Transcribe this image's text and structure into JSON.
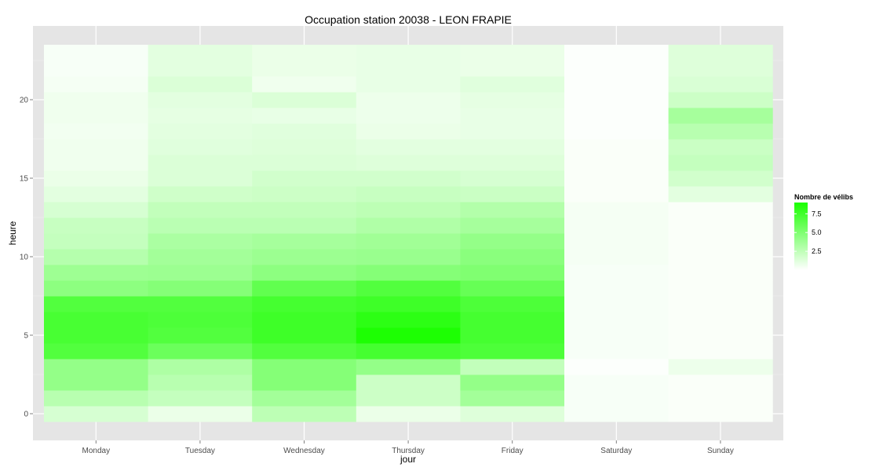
{
  "chart_data": {
    "type": "heatmap",
    "title": "Occupation station 20038 - LEON FRAPIE",
    "xlabel": "jour",
    "ylabel": "heure",
    "x_categories": [
      "Monday",
      "Tuesday",
      "Wednesday",
      "Thursday",
      "Friday",
      "Saturday",
      "Sunday"
    ],
    "y_range": [
      0,
      23
    ],
    "y_ticks": [
      0,
      5,
      10,
      15,
      20
    ],
    "grid": true,
    "legend": {
      "title": "Nombre de vélibs",
      "position": "right",
      "ticks": [
        2.5,
        5.0,
        7.5
      ],
      "tick_labels": [
        "2.5",
        "5.0",
        "7.5"
      ],
      "min": 0,
      "max": 9,
      "low_color": "#ffffff",
      "high_color": "#1aff00"
    },
    "values": [
      [
        1.6,
        0.8,
        2.6,
        0.8,
        1.3,
        0.3,
        0.2
      ],
      [
        2.8,
        2.3,
        3.6,
        2.0,
        3.6,
        0.3,
        0.2
      ],
      [
        4.2,
        2.8,
        4.8,
        2.0,
        4.2,
        0.3,
        0.2
      ],
      [
        4.2,
        3.2,
        4.8,
        4.2,
        2.4,
        0.1,
        0.7
      ],
      [
        6.8,
        5.8,
        6.8,
        7.3,
        7.0,
        0.3,
        0.2
      ],
      [
        7.2,
        6.8,
        7.6,
        8.9,
        7.3,
        0.3,
        0.2
      ],
      [
        7.2,
        7.0,
        7.6,
        8.3,
        7.3,
        0.3,
        0.2
      ],
      [
        6.8,
        6.8,
        7.3,
        7.6,
        7.0,
        0.3,
        0.2
      ],
      [
        4.5,
        4.8,
        6.2,
        6.8,
        6.0,
        0.3,
        0.2
      ],
      [
        3.8,
        3.9,
        4.5,
        4.8,
        5.0,
        0.3,
        0.2
      ],
      [
        2.9,
        3.6,
        3.9,
        4.0,
        4.6,
        0.4,
        0.2
      ],
      [
        2.3,
        3.3,
        3.5,
        3.7,
        4.2,
        0.4,
        0.2
      ],
      [
        2.2,
        2.7,
        2.7,
        3.1,
        3.5,
        0.4,
        0.2
      ],
      [
        1.6,
        2.4,
        2.4,
        2.6,
        3.0,
        0.4,
        0.2
      ],
      [
        1.1,
        1.9,
        2.0,
        2.2,
        2.1,
        0.2,
        1.1
      ],
      [
        0.8,
        1.4,
        1.8,
        1.8,
        1.6,
        0.2,
        1.8
      ],
      [
        0.6,
        1.4,
        1.4,
        1.3,
        1.3,
        0.2,
        2.3
      ],
      [
        0.6,
        1.2,
        1.3,
        1.1,
        1.1,
        0.2,
        2.1
      ],
      [
        0.5,
        1.1,
        1.2,
        0.8,
        0.9,
        0.1,
        2.8
      ],
      [
        0.6,
        1.0,
        0.9,
        0.7,
        0.9,
        0.1,
        3.5
      ],
      [
        0.6,
        1.1,
        1.4,
        0.7,
        1.0,
        0.1,
        2.0
      ],
      [
        0.4,
        1.4,
        0.6,
        0.9,
        1.2,
        0.1,
        1.5
      ],
      [
        0.3,
        1.1,
        0.8,
        0.9,
        0.8,
        0.1,
        1.3
      ],
      [
        0.3,
        1.1,
        0.8,
        0.9,
        0.8,
        0.1,
        1.3
      ]
    ]
  }
}
